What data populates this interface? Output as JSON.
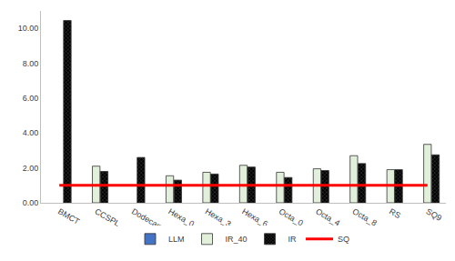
{
  "chart_data": {
    "type": "bar",
    "categories": [
      "BMCT",
      "CCSPL",
      "Dodecagon",
      "Hexa_0",
      "Hexa_3",
      "Hexa_6",
      "Octa_0",
      "Octa_4",
      "Octa_8",
      "RS",
      "SQ9"
    ],
    "series": [
      {
        "name": "LLM",
        "type": "bar",
        "color": "#4472c4",
        "values": [
          null,
          null,
          null,
          null,
          null,
          null,
          null,
          null,
          null,
          null,
          null
        ]
      },
      {
        "name": "IR_40",
        "type": "bar",
        "color": "#e2efda",
        "values": [
          null,
          2.1,
          null,
          1.55,
          1.75,
          2.15,
          1.75,
          1.95,
          2.7,
          1.9,
          3.35
        ]
      },
      {
        "name": "IR",
        "type": "bar",
        "color": "#000000",
        "values": [
          10.45,
          1.8,
          2.6,
          1.3,
          1.65,
          2.05,
          1.45,
          1.85,
          2.25,
          1.9,
          2.75
        ]
      },
      {
        "name": "SQ",
        "type": "line",
        "color": "#ff0000",
        "values": [
          1,
          1,
          1,
          1,
          1,
          1,
          1,
          1,
          1,
          1,
          1
        ]
      }
    ],
    "ylim": [
      0,
      11
    ],
    "yticks": [
      {
        "value": 0,
        "label": "0.00"
      },
      {
        "value": 2,
        "label": "2.00"
      },
      {
        "value": 4,
        "label": "4.00"
      },
      {
        "value": 6,
        "label": "6.00"
      },
      {
        "value": 8,
        "label": "8.00"
      },
      {
        "value": 10,
        "label": "10.00"
      }
    ],
    "grid": false,
    "legend": "bottom"
  }
}
